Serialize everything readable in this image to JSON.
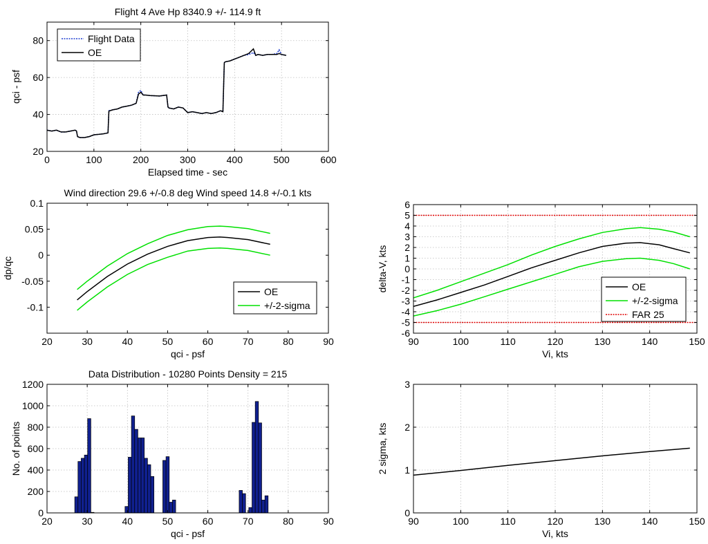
{
  "chart_data": [
    {
      "id": "p1",
      "type": "line",
      "title": "Flight 4 Ave Hp 8340.9  +/- 114.9 ft",
      "xlabel": "Elapsed time - sec",
      "ylabel": "qci - psf",
      "xlim": [
        0,
        600
      ],
      "ylim": [
        20,
        90
      ],
      "xticks": [
        0,
        100,
        200,
        300,
        400,
        500,
        600
      ],
      "yticks": [
        20,
        40,
        60,
        80
      ],
      "grid": true,
      "legend": "top-left",
      "series": [
        {
          "name": "Flight Data",
          "color": "#1f3fd0",
          "style": "dotted",
          "x": [
            0,
            10,
            20,
            30,
            40,
            50,
            60,
            63,
            65,
            70,
            80,
            90,
            100,
            110,
            120,
            130,
            132,
            140,
            150,
            160,
            170,
            180,
            190,
            195,
            200,
            205,
            210,
            220,
            240,
            255,
            258,
            260,
            270,
            280,
            290,
            300,
            310,
            320,
            330,
            340,
            350,
            360,
            370,
            375,
            378,
            380,
            390,
            400,
            410,
            420,
            430,
            440,
            445,
            450,
            460,
            470,
            480,
            490,
            495,
            500,
            510
          ],
          "y": [
            31.5,
            31,
            31.5,
            30.5,
            30.5,
            31,
            31.5,
            31,
            28,
            27.5,
            27.5,
            28,
            29,
            29.2,
            29.5,
            30,
            42,
            42.5,
            43,
            44,
            44.5,
            45,
            46,
            52,
            53,
            50.5,
            50.5,
            50.2,
            50,
            50.5,
            44,
            43.5,
            43,
            44,
            43.5,
            41,
            41.5,
            41,
            40.5,
            41,
            40.5,
            41,
            42,
            41.5,
            68,
            68.5,
            69,
            70,
            71,
            72,
            72.5,
            73.5,
            72,
            72.5,
            72,
            72.5,
            72.5,
            73,
            75,
            72.5,
            72
          ]
        },
        {
          "name": "OE",
          "color": "#000000",
          "style": "solid",
          "x": [
            0,
            10,
            20,
            30,
            40,
            50,
            60,
            63,
            65,
            70,
            80,
            90,
            100,
            110,
            120,
            130,
            132,
            140,
            150,
            160,
            170,
            180,
            190,
            195,
            200,
            205,
            210,
            220,
            240,
            255,
            258,
            260,
            270,
            280,
            290,
            300,
            310,
            320,
            330,
            340,
            350,
            360,
            370,
            375,
            378,
            380,
            390,
            400,
            410,
            420,
            430,
            440,
            445,
            450,
            460,
            470,
            480,
            490,
            495,
            500,
            510
          ],
          "y": [
            31.5,
            31,
            31.5,
            30.5,
            30.5,
            31,
            31.5,
            31,
            28,
            27.5,
            27.5,
            28,
            29,
            29.2,
            29.5,
            30,
            41.8,
            42.5,
            43,
            44,
            44.5,
            45,
            46,
            51,
            52,
            50.5,
            50.5,
            50.2,
            50,
            50.5,
            44,
            43.5,
            43,
            44,
            43.5,
            41,
            41.5,
            41,
            40.5,
            41,
            40.5,
            41,
            42,
            41.5,
            68,
            68.5,
            69,
            70,
            71,
            72,
            73,
            75.5,
            72,
            72.5,
            72,
            72.5,
            72.5,
            72.5,
            73,
            72.5,
            72
          ]
        }
      ]
    },
    {
      "id": "p2",
      "type": "line",
      "title": "Wind direction 29.6 +/-0.8  deg   Wind speed 14.8 +/-0.1   kts",
      "xlabel": "qci - psf",
      "ylabel": "dp/qc",
      "xlim": [
        20,
        90
      ],
      "ylim": [
        -0.15,
        0.1
      ],
      "xticks": [
        20,
        30,
        40,
        50,
        60,
        70,
        80,
        90
      ],
      "yticks": [
        -0.1,
        -0.05,
        0,
        0.05,
        0.1
      ],
      "ytick_labels": [
        "-0.1",
        "-0.05",
        "0",
        "0.05",
        "0.1"
      ],
      "grid": false,
      "legend": "bottom-right",
      "series": [
        {
          "name": "OE",
          "color": "#000000",
          "x": [
            27.5,
            30,
            35,
            40,
            45,
            50,
            55,
            60,
            63,
            65,
            70,
            75.5
          ],
          "y": [
            -0.086,
            -0.07,
            -0.041,
            -0.017,
            0.002,
            0.017,
            0.028,
            0.034,
            0.035,
            0.034,
            0.03,
            0.021
          ]
        },
        {
          "name": "+/-2-sigma",
          "color": "#00e000",
          "x": [
            27.5,
            30,
            35,
            40,
            45,
            50,
            55,
            60,
            63,
            65,
            70,
            75.5
          ],
          "y": [
            -0.066,
            -0.05,
            -0.021,
            0.003,
            0.022,
            0.038,
            0.049,
            0.055,
            0.056,
            0.055,
            0.051,
            0.042
          ]
        },
        {
          "name": "",
          "color": "#00e000",
          "legend": false,
          "x": [
            27.5,
            30,
            35,
            40,
            45,
            50,
            55,
            60,
            63,
            65,
            70,
            75.5
          ],
          "y": [
            -0.106,
            -0.09,
            -0.061,
            -0.037,
            -0.018,
            -0.004,
            0.008,
            0.013,
            0.014,
            0.013,
            0.009,
            0
          ]
        }
      ]
    },
    {
      "id": "p3",
      "type": "bar",
      "title": "Data Distribution - 10280 Points    Density = 215",
      "xlabel": "qci - psf",
      "ylabel": "No. of points",
      "xlim": [
        20,
        90
      ],
      "ylim": [
        0,
        1200
      ],
      "xticks": [
        20,
        30,
        40,
        50,
        60,
        70,
        80,
        90
      ],
      "yticks": [
        0,
        200,
        400,
        600,
        800,
        1000,
        1200
      ],
      "grid": true,
      "bar_color": "#10208f",
      "bar_width": 0.8,
      "x": [
        27.3,
        28.1,
        28.9,
        29.7,
        30.5,
        31.3,
        32.1,
        39.8,
        40.6,
        41.4,
        42.2,
        43.0,
        43.8,
        44.6,
        45.4,
        46.2,
        49.2,
        50.0,
        50.8,
        51.6,
        52.4,
        68.2,
        69.0,
        69.8,
        70.6,
        71.4,
        72.2,
        73.0,
        73.8,
        74.6
      ],
      "values": [
        150,
        480,
        510,
        540,
        880,
        5,
        0,
        60,
        520,
        905,
        780,
        700,
        700,
        510,
        450,
        340,
        490,
        525,
        100,
        120,
        0,
        210,
        180,
        0,
        50,
        845,
        1040,
        840,
        120,
        160
      ]
    },
    {
      "id": "p4",
      "type": "line",
      "title": "",
      "xlabel": "Vi, kts",
      "ylabel": "delta-V, kts",
      "xlim": [
        90,
        150
      ],
      "ylim": [
        -6,
        6
      ],
      "xticks": [
        90,
        100,
        110,
        120,
        130,
        140,
        150
      ],
      "yticks": [
        -6,
        -5,
        -4,
        -3,
        -2,
        -1,
        0,
        1,
        2,
        3,
        4,
        5,
        6
      ],
      "grid": true,
      "legend": "bottom-right",
      "series": [
        {
          "name": "OE",
          "color": "#000000",
          "style": "solid",
          "x": [
            90,
            95,
            100,
            105,
            110,
            115,
            120,
            125,
            130,
            135,
            138,
            142,
            145,
            148.5
          ],
          "y": [
            -3.5,
            -2.9,
            -2.2,
            -1.5,
            -0.7,
            0.1,
            0.8,
            1.5,
            2.1,
            2.4,
            2.45,
            2.25,
            1.9,
            1.5
          ]
        },
        {
          "name": "+/-2-sigma",
          "color": "#00e000",
          "style": "solid",
          "x": [
            90,
            95,
            100,
            105,
            110,
            115,
            120,
            125,
            130,
            135,
            138,
            142,
            145,
            148.5
          ],
          "y": [
            -2.7,
            -2.0,
            -1.2,
            -0.4,
            0.4,
            1.3,
            2.1,
            2.8,
            3.4,
            3.75,
            3.85,
            3.7,
            3.45,
            3.0
          ]
        },
        {
          "name": "",
          "color": "#00e000",
          "style": "solid",
          "legend": false,
          "x": [
            90,
            95,
            100,
            105,
            110,
            115,
            120,
            125,
            130,
            135,
            138,
            142,
            145,
            148.5
          ],
          "y": [
            -4.4,
            -3.9,
            -3.3,
            -2.6,
            -1.9,
            -1.2,
            -0.5,
            0.2,
            0.7,
            0.95,
            1.0,
            0.8,
            0.5,
            0.0
          ]
        },
        {
          "name": "FAR 25",
          "color": "#e00000",
          "style": "dotted",
          "x": [
            90,
            150
          ],
          "y": [
            5,
            5
          ]
        },
        {
          "name": "",
          "color": "#e00000",
          "style": "dotted",
          "legend": false,
          "x": [
            90,
            150
          ],
          "y": [
            -5,
            -5
          ]
        }
      ]
    },
    {
      "id": "p5",
      "type": "line",
      "title": "",
      "xlabel": "Vi, kts",
      "ylabel": "2 sigma, kts",
      "xlim": [
        90,
        150
      ],
      "ylim": [
        0,
        3
      ],
      "xticks": [
        90,
        100,
        110,
        120,
        130,
        140,
        150
      ],
      "yticks": [
        0,
        1,
        2,
        3
      ],
      "grid": true,
      "series": [
        {
          "name": "",
          "color": "#000000",
          "style": "solid",
          "x": [
            90,
            100,
            110,
            120,
            130,
            140,
            148.5
          ],
          "y": [
            0.88,
            0.99,
            1.11,
            1.22,
            1.33,
            1.43,
            1.51
          ]
        }
      ]
    }
  ]
}
